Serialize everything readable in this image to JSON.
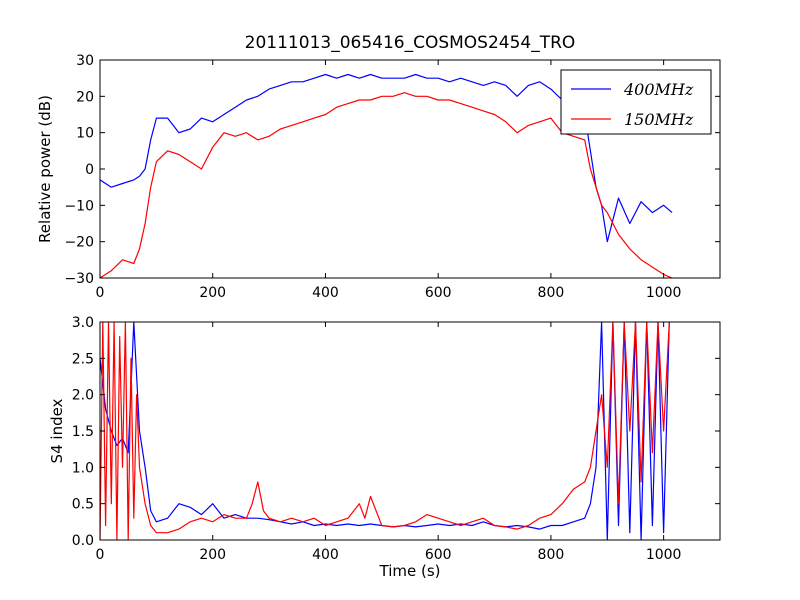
{
  "chart_data": [
    {
      "type": "line",
      "title": "20111013_065416_COSMOS2454_TRO",
      "xlabel": "",
      "ylabel": "Relative power (dB)",
      "xlim": [
        0,
        1100
      ],
      "ylim": [
        -30,
        30
      ],
      "xticks": [
        "0",
        "200",
        "400",
        "600",
        "800",
        "1000"
      ],
      "yticks": [
        "−30",
        "−20",
        "−10",
        "0",
        "10",
        "20",
        "30"
      ],
      "legend": {
        "position": "top-right",
        "entries": [
          "400MHz",
          "150MHz"
        ]
      },
      "series": [
        {
          "name": "400MHz",
          "color": "#0000ff",
          "x": [
            0,
            20,
            40,
            60,
            70,
            80,
            90,
            100,
            120,
            140,
            160,
            180,
            200,
            220,
            240,
            260,
            280,
            300,
            320,
            340,
            360,
            380,
            400,
            420,
            440,
            460,
            480,
            500,
            520,
            540,
            560,
            580,
            600,
            620,
            640,
            660,
            680,
            700,
            720,
            740,
            760,
            780,
            800,
            820,
            840,
            860,
            870,
            880,
            890,
            900,
            920,
            940,
            960,
            980,
            1000,
            1015
          ],
          "y": [
            -3,
            -5,
            -4,
            -3,
            -2,
            0,
            8,
            14,
            14,
            10,
            11,
            14,
            13,
            15,
            17,
            19,
            20,
            22,
            23,
            24,
            24,
            25,
            26,
            25,
            26,
            25,
            26,
            25,
            25,
            25,
            26,
            25,
            25,
            24,
            25,
            24,
            23,
            24,
            23,
            20,
            23,
            24,
            22,
            19,
            18,
            15,
            5,
            -5,
            -10,
            -20,
            -8,
            -15,
            -9,
            -12,
            -10,
            -12
          ]
        },
        {
          "name": "150MHz",
          "color": "#ff0000",
          "x": [
            0,
            20,
            40,
            60,
            70,
            80,
            90,
            100,
            120,
            140,
            160,
            180,
            200,
            220,
            240,
            260,
            280,
            300,
            320,
            340,
            360,
            380,
            400,
            420,
            440,
            460,
            480,
            500,
            520,
            540,
            560,
            580,
            600,
            620,
            640,
            660,
            680,
            700,
            720,
            740,
            760,
            780,
            800,
            820,
            840,
            860,
            870,
            880,
            890,
            900,
            920,
            940,
            960,
            980,
            1000,
            1015
          ],
          "y": [
            -30,
            -28,
            -25,
            -26,
            -22,
            -15,
            -5,
            2,
            5,
            4,
            2,
            0,
            6,
            10,
            9,
            10,
            8,
            9,
            11,
            12,
            13,
            14,
            15,
            17,
            18,
            19,
            19,
            20,
            20,
            21,
            20,
            20,
            19,
            19,
            18,
            17,
            16,
            15,
            13,
            10,
            12,
            13,
            14,
            10,
            9,
            8,
            0,
            -5,
            -10,
            -12,
            -18,
            -22,
            -25,
            -27,
            -29,
            -30
          ]
        }
      ]
    },
    {
      "type": "line",
      "title": "",
      "xlabel": "Time (s)",
      "ylabel": "S4 index",
      "xlim": [
        0,
        1100
      ],
      "ylim": [
        0,
        3
      ],
      "xticks": [
        "0",
        "200",
        "400",
        "600",
        "800",
        "1000"
      ],
      "yticks": [
        "0.0",
        "0.5",
        "1.0",
        "1.5",
        "2.0",
        "2.5",
        "3.0"
      ],
      "series": [
        {
          "name": "400MHz",
          "color": "#0000ff",
          "x": [
            0,
            10,
            20,
            30,
            40,
            50,
            60,
            70,
            80,
            90,
            100,
            120,
            140,
            160,
            180,
            200,
            220,
            240,
            260,
            280,
            300,
            320,
            340,
            360,
            380,
            400,
            420,
            440,
            460,
            480,
            500,
            520,
            540,
            560,
            580,
            600,
            620,
            640,
            660,
            680,
            700,
            720,
            740,
            760,
            780,
            800,
            820,
            840,
            860,
            870,
            880,
            890,
            900,
            910,
            920,
            930,
            940,
            950,
            960,
            970,
            980,
            990,
            1000,
            1010
          ],
          "y": [
            2.5,
            1.8,
            1.5,
            1.3,
            1.4,
            1.2,
            3.0,
            1.5,
            1.0,
            0.4,
            0.25,
            0.3,
            0.5,
            0.45,
            0.35,
            0.5,
            0.3,
            0.35,
            0.3,
            0.3,
            0.28,
            0.25,
            0.22,
            0.25,
            0.2,
            0.22,
            0.2,
            0.22,
            0.2,
            0.22,
            0.2,
            0.18,
            0.2,
            0.18,
            0.2,
            0.22,
            0.2,
            0.22,
            0.2,
            0.25,
            0.2,
            0.18,
            0.2,
            0.18,
            0.15,
            0.2,
            0.2,
            0.25,
            0.3,
            0.5,
            1.0,
            3.0,
            0.0,
            3.0,
            0.2,
            3.0,
            0.1,
            3.0,
            0.0,
            3.0,
            0.2,
            3.0,
            0.1,
            3.0
          ]
        },
        {
          "name": "150MHz",
          "color": "#ff0000",
          "x": [
            0,
            5,
            10,
            15,
            20,
            25,
            30,
            35,
            40,
            45,
            50,
            55,
            60,
            65,
            70,
            80,
            90,
            100,
            120,
            140,
            160,
            180,
            200,
            220,
            240,
            260,
            270,
            280,
            290,
            300,
            320,
            340,
            360,
            380,
            400,
            420,
            440,
            460,
            470,
            480,
            500,
            520,
            540,
            560,
            580,
            600,
            620,
            640,
            660,
            680,
            700,
            720,
            740,
            760,
            780,
            800,
            820,
            840,
            860,
            870,
            880,
            890,
            900,
            910,
            920,
            930,
            940,
            950,
            960,
            970,
            980,
            990,
            1000,
            1010
          ],
          "y": [
            0.0,
            3.0,
            0.2,
            3.0,
            0.5,
            3.0,
            0.0,
            2.8,
            1.0,
            3.0,
            0.0,
            2.5,
            0.3,
            2.0,
            1.0,
            0.5,
            0.2,
            0.1,
            0.1,
            0.15,
            0.25,
            0.3,
            0.25,
            0.35,
            0.3,
            0.3,
            0.5,
            0.8,
            0.4,
            0.3,
            0.25,
            0.3,
            0.25,
            0.3,
            0.2,
            0.25,
            0.3,
            0.5,
            0.3,
            0.6,
            0.2,
            0.18,
            0.2,
            0.25,
            0.35,
            0.3,
            0.25,
            0.2,
            0.25,
            0.3,
            0.2,
            0.18,
            0.15,
            0.2,
            0.3,
            0.35,
            0.5,
            0.7,
            0.8,
            1.0,
            1.5,
            2.0,
            1.0,
            3.0,
            0.5,
            3.0,
            1.5,
            3.0,
            0.8,
            3.0,
            1.2,
            3.0,
            1.5,
            3.0
          ]
        }
      ]
    }
  ]
}
